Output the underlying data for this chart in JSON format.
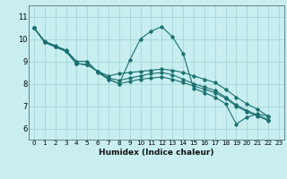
{
  "xlabel": "Humidex (Indice chaleur)",
  "background_color": "#c8eef0",
  "line_color": "#1a7070",
  "grid_color": "#a0d8d8",
  "xlim": [
    -0.5,
    23.5
  ],
  "ylim": [
    5.5,
    11.5
  ],
  "yticks": [
    6,
    7,
    8,
    9,
    10,
    11
  ],
  "xticks": [
    0,
    1,
    2,
    3,
    4,
    5,
    6,
    7,
    8,
    9,
    10,
    11,
    12,
    13,
    14,
    15,
    16,
    17,
    18,
    19,
    20,
    21,
    22,
    23
  ],
  "series": [
    [
      10.5,
      9.9,
      9.7,
      9.5,
      9.0,
      9.0,
      8.5,
      8.2,
      8.0,
      9.05,
      10.0,
      10.35,
      10.55,
      10.1,
      9.35,
      7.8,
      7.6,
      7.4,
      7.1,
      6.2,
      6.5,
      6.65,
      6.55
    ],
    [
      10.5,
      9.85,
      9.65,
      9.45,
      8.9,
      8.85,
      8.55,
      8.35,
      8.45,
      8.5,
      8.55,
      8.6,
      8.65,
      8.6,
      8.5,
      8.35,
      8.2,
      8.05,
      7.75,
      7.4,
      7.1,
      6.85,
      6.55
    ],
    [
      10.5,
      9.85,
      9.65,
      9.45,
      8.9,
      8.85,
      8.55,
      8.2,
      8.0,
      8.1,
      8.2,
      8.25,
      8.3,
      8.2,
      8.05,
      7.9,
      7.75,
      7.6,
      7.35,
      7.0,
      6.75,
      6.55,
      6.35
    ],
    [
      10.5,
      9.85,
      9.65,
      9.45,
      8.9,
      8.85,
      8.55,
      8.25,
      8.15,
      8.25,
      8.35,
      8.45,
      8.5,
      8.4,
      8.2,
      8.0,
      7.85,
      7.7,
      7.4,
      7.05,
      6.8,
      6.6,
      6.4
    ]
  ]
}
